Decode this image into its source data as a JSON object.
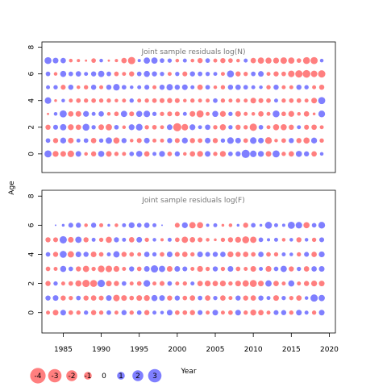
{
  "chart_data": [
    {
      "type": "scatter",
      "title": "Joint sample residuals log(N)",
      "ages": [
        0,
        1,
        2,
        3,
        4,
        5,
        6,
        7
      ],
      "years": [
        1983,
        1984,
        1985,
        1986,
        1987,
        1988,
        1989,
        1990,
        1991,
        1992,
        1993,
        1994,
        1995,
        1996,
        1997,
        1998,
        1999,
        2000,
        2001,
        2002,
        2003,
        2004,
        2005,
        2006,
        2007,
        2008,
        2009,
        2010,
        2011,
        2012,
        2013,
        2014,
        2015,
        2016,
        2017,
        2018,
        2019
      ],
      "residuals": [
        [
          1.9,
          -1.3,
          -1.2,
          -1.6,
          1.2,
          -0.5,
          -1.0,
          1.4,
          -1.2,
          -0.7,
          -0.6,
          0.8,
          1.4,
          -1.1,
          0.6,
          1.3,
          -0.8,
          1.0,
          -0.5,
          -1.1,
          -1.3,
          1.2,
          -0.7,
          -1.3,
          0.8,
          1.0,
          2.5,
          1.6,
          1.3,
          -1.2,
          1.9,
          -0.7,
          -1.1,
          1.4,
          1.0,
          -1.1,
          0.5
        ],
        [
          0.8,
          -1.0,
          1.3,
          -1.2,
          0.6,
          0.8,
          -1.1,
          0.7,
          1.5,
          -1.4,
          1.0,
          -0.5,
          -0.9,
          1.2,
          -0.6,
          -0.6,
          1.0,
          -0.9,
          1.3,
          -1.0,
          -0.8,
          1.2,
          -1.0,
          0.7,
          1.6,
          1.2,
          -0.8,
          1.6,
          1.2,
          -1.7,
          -0.5,
          -0.8,
          1.0,
          -1.0,
          -1.4,
          1.3,
          -0.7
        ],
        [
          -1.0,
          0.9,
          1.5,
          -1.3,
          -1.1,
          1.8,
          0.7,
          -1.2,
          -1.5,
          0.8,
          -0.5,
          1.3,
          1.7,
          -0.7,
          -0.8,
          -0.6,
          1.2,
          -2.5,
          -1.6,
          1.3,
          0.6,
          1.1,
          -0.7,
          -1.4,
          0.7,
          -1.0,
          -0.7,
          -2.0,
          0.8,
          -0.6,
          -1.4,
          -1.4,
          -1.0,
          0.6,
          -0.9,
          -1.1,
          -0.6
        ],
        [
          -0.2,
          0.5,
          1.9,
          -1.1,
          -1.2,
          1.3,
          0.6,
          1.1,
          -0.5,
          -0.8,
          1.5,
          -0.9,
          1.4,
          1.6,
          0.7,
          -0.7,
          -0.9,
          -0.9,
          0.6,
          -1.2,
          -1.9,
          -0.6,
          1.4,
          -1.3,
          0.7,
          -1.2,
          -0.6,
          -0.5,
          -1.1,
          -0.6,
          1.8,
          -0.8,
          -1.3,
          -0.5,
          -1.1,
          -0.3,
          1.7
        ],
        [
          1.6,
          -0.3,
          0.5,
          -0.6,
          -0.8,
          -0.7,
          -0.8,
          -0.7,
          -0.7,
          -0.5,
          -0.6,
          0.7,
          -0.6,
          -0.7,
          -0.8,
          -0.9,
          -1.0,
          -0.9,
          -0.5,
          -0.7,
          -0.6,
          -0.6,
          0.8,
          -0.7,
          -0.6,
          -0.7,
          -0.6,
          -1.2,
          -0.9,
          -0.8,
          0.6,
          -0.7,
          -0.8,
          -0.8,
          -0.6,
          -1.2,
          1.9
        ],
        [
          0.6,
          0.7,
          -0.9,
          1.0,
          -0.5,
          -0.7,
          1.0,
          -0.6,
          1.0,
          1.6,
          0.8,
          0.5,
          0.6,
          0.9,
          -0.6,
          1.0,
          1.5,
          1.0,
          1.2,
          0.6,
          -1.1,
          0.8,
          -0.5,
          -0.7,
          1.0,
          1.1,
          0.8,
          0.6,
          0.5,
          -0.7,
          1.0,
          -0.6,
          -0.6,
          1.0,
          0.7,
          -0.6,
          -1.0
        ],
        [
          0.8,
          -0.5,
          1.4,
          0.8,
          1.1,
          0.6,
          1.0,
          1.5,
          0.8,
          -0.8,
          -0.6,
          -1.0,
          0.8,
          1.4,
          1.0,
          0.7,
          -0.6,
          0.7,
          -0.9,
          1.0,
          0.8,
          0.7,
          0.6,
          -0.6,
          1.8,
          -1.0,
          -0.7,
          0.8,
          1.2,
          -0.6,
          -1.0,
          -0.8,
          -1.6,
          -2.0,
          -2.2,
          -1.6,
          -2.0
        ],
        [
          1.8,
          1.2,
          1.1,
          -0.5,
          -0.4,
          -0.2,
          -0.8,
          0.5,
          -0.2,
          -0.4,
          -1.1,
          -2.0,
          0.4,
          1.5,
          1.5,
          0.8,
          0.7,
          -0.5,
          0.6,
          -0.5,
          -1.0,
          0.8,
          -0.6,
          -1.0,
          -0.8,
          -0.5,
          0.6,
          -1.1,
          -1.5,
          -1.4,
          -1.3,
          -1.6,
          -1.5,
          -0.8,
          -1.8,
          -1.9,
          0.5
        ]
      ]
    },
    {
      "type": "scatter",
      "title": "Joint sample residuals log(F)",
      "ages": [
        0,
        1,
        2,
        3,
        4,
        5,
        6
      ],
      "years": [
        1983,
        1984,
        1985,
        1986,
        1987,
        1988,
        1989,
        1990,
        1991,
        1992,
        1993,
        1994,
        1995,
        1996,
        1997,
        1998,
        1999,
        2000,
        2001,
        2002,
        2003,
        2004,
        2005,
        2006,
        2007,
        2008,
        2009,
        2010,
        2011,
        2012,
        2013,
        2014,
        2015,
        2016,
        2017,
        2018,
        2019
      ],
      "residuals": [
        [
          -0.6,
          -1.2,
          1.2,
          -0.8,
          -0.7,
          0.7,
          -1.0,
          -0.7,
          0.8,
          -0.6,
          1.0,
          -0.7,
          0.8,
          -1.0,
          0.6,
          0.5,
          1.2,
          -0.8,
          -0.8,
          -1.0,
          0.9,
          -0.6,
          1.2,
          -0.6,
          -0.8,
          1.2,
          -0.7,
          -1.3,
          -1.1,
          -0.6,
          0.9,
          1.0,
          -0.7,
          1.2,
          0.6,
          -0.7,
          1.2
        ],
        [
          1.0,
          1.2,
          -1.0,
          -0.7,
          0.8,
          -1.0,
          -1.1,
          -0.9,
          1.2,
          -1.6,
          -1.2,
          -0.8,
          -1.2,
          -1.3,
          1.4,
          1.2,
          -1.0,
          1.0,
          -0.8,
          -1.1,
          0.8,
          -1.1,
          0.7,
          -1.1,
          -0.6,
          1.0,
          -1.0,
          -1.1,
          1.0,
          0.6,
          -1.2,
          0.7,
          -0.7,
          -1.1,
          0.5,
          2.0,
          1.5
        ],
        [
          -1.0,
          0.7,
          -0.6,
          -0.8,
          -1.4,
          -2.0,
          -1.8,
          2.0,
          -1.2,
          -1.0,
          0.8,
          -0.6,
          -0.8,
          1.7,
          -0.6,
          -0.9,
          0.8,
          -0.6,
          -0.7,
          0.6,
          -1.1,
          -1.3,
          -1.1,
          -1.3,
          -0.7,
          -1.2,
          -1.5,
          -1.8,
          -1.2,
          1.5,
          -1.1,
          -0.6,
          1.4,
          -0.6,
          -1.0,
          -1.3,
          -1.2
        ],
        [
          -0.8,
          -0.6,
          1.4,
          0.8,
          -1.0,
          -1.5,
          -0.7,
          -1.7,
          -1.6,
          -1.3,
          -0.6,
          1.0,
          -0.8,
          1.2,
          2.0,
          1.5,
          -1.2,
          1.2,
          0.9,
          -0.6,
          -1.3,
          -0.7,
          1.0,
          -0.7,
          1.2,
          -0.8,
          -0.6,
          -1.2,
          0.6,
          -1.3,
          0.8,
          1.5,
          -1.0,
          0.7,
          -1.1,
          1.1,
          1.2
        ],
        [
          0.8,
          -1.0,
          1.8,
          -1.5,
          1.2,
          1.0,
          -1.2,
          -0.8,
          0.6,
          1.5,
          -1.0,
          -0.8,
          -0.6,
          1.1,
          0.7,
          -0.8,
          1.2,
          -0.9,
          -1.1,
          -0.7,
          1.2,
          0.9,
          1.0,
          1.1,
          -1.3,
          -1.0,
          -1.1,
          -0.8,
          1.1,
          -0.8,
          -0.7,
          0.6,
          0.5,
          -0.7,
          0.9,
          -1.1,
          1.3
        ],
        [
          -1.0,
          -0.9,
          2.0,
          -1.2,
          1.5,
          -1.0,
          0.6,
          -0.7,
          -1.4,
          1.0,
          0.6,
          -1.1,
          1.2,
          -0.7,
          0.5,
          -0.4,
          0.6,
          -0.8,
          -1.5,
          -1.1,
          -0.9,
          -0.5,
          -0.3,
          -0.7,
          -1.0,
          -1.3,
          -1.8,
          -1.5,
          0.8,
          0.4,
          0.6,
          -0.5,
          0.5,
          -1.0,
          0.5,
          -0.7,
          0.9
        ],
        [
          0.0,
          0.1,
          0.3,
          0.9,
          1.0,
          -0.5,
          1.0,
          -0.6,
          0.3,
          -0.5,
          0.6,
          1.3,
          0.8,
          1.1,
          0.6,
          0.1,
          0.0,
          -0.9,
          1.3,
          -1.5,
          -1.4,
          0.4,
          0.6,
          -0.3,
          -0.5,
          0.3,
          -1.0,
          0.8,
          0.3,
          1.8,
          0.6,
          0.4,
          1.9,
          1.6,
          -1.4,
          0.8,
          1.7
        ]
      ]
    }
  ],
  "x_axis": {
    "label": "Year",
    "ticks": [
      1985,
      1990,
      1995,
      2000,
      2005,
      2010,
      2015,
      2020
    ],
    "xlim": [
      1982.2,
      2020.8
    ]
  },
  "y_axis": {
    "label": "Age",
    "ticks": [
      0,
      2,
      4,
      6,
      8
    ],
    "ylim": [
      -1.4,
      8.4
    ]
  },
  "legend": {
    "entries": [
      {
        "value": -4,
        "label": "-4"
      },
      {
        "value": -3,
        "label": "-3"
      },
      {
        "value": -2,
        "label": "-2"
      },
      {
        "value": -1,
        "label": "-1"
      },
      {
        "value": 0,
        "label": "0"
      },
      {
        "value": 1,
        "label": "1"
      },
      {
        "value": 2,
        "label": "2"
      },
      {
        "value": 3,
        "label": "3"
      }
    ]
  },
  "colors": {
    "positive": "#0000ff",
    "negative": "#ff0000",
    "panel_title": "#777777"
  }
}
